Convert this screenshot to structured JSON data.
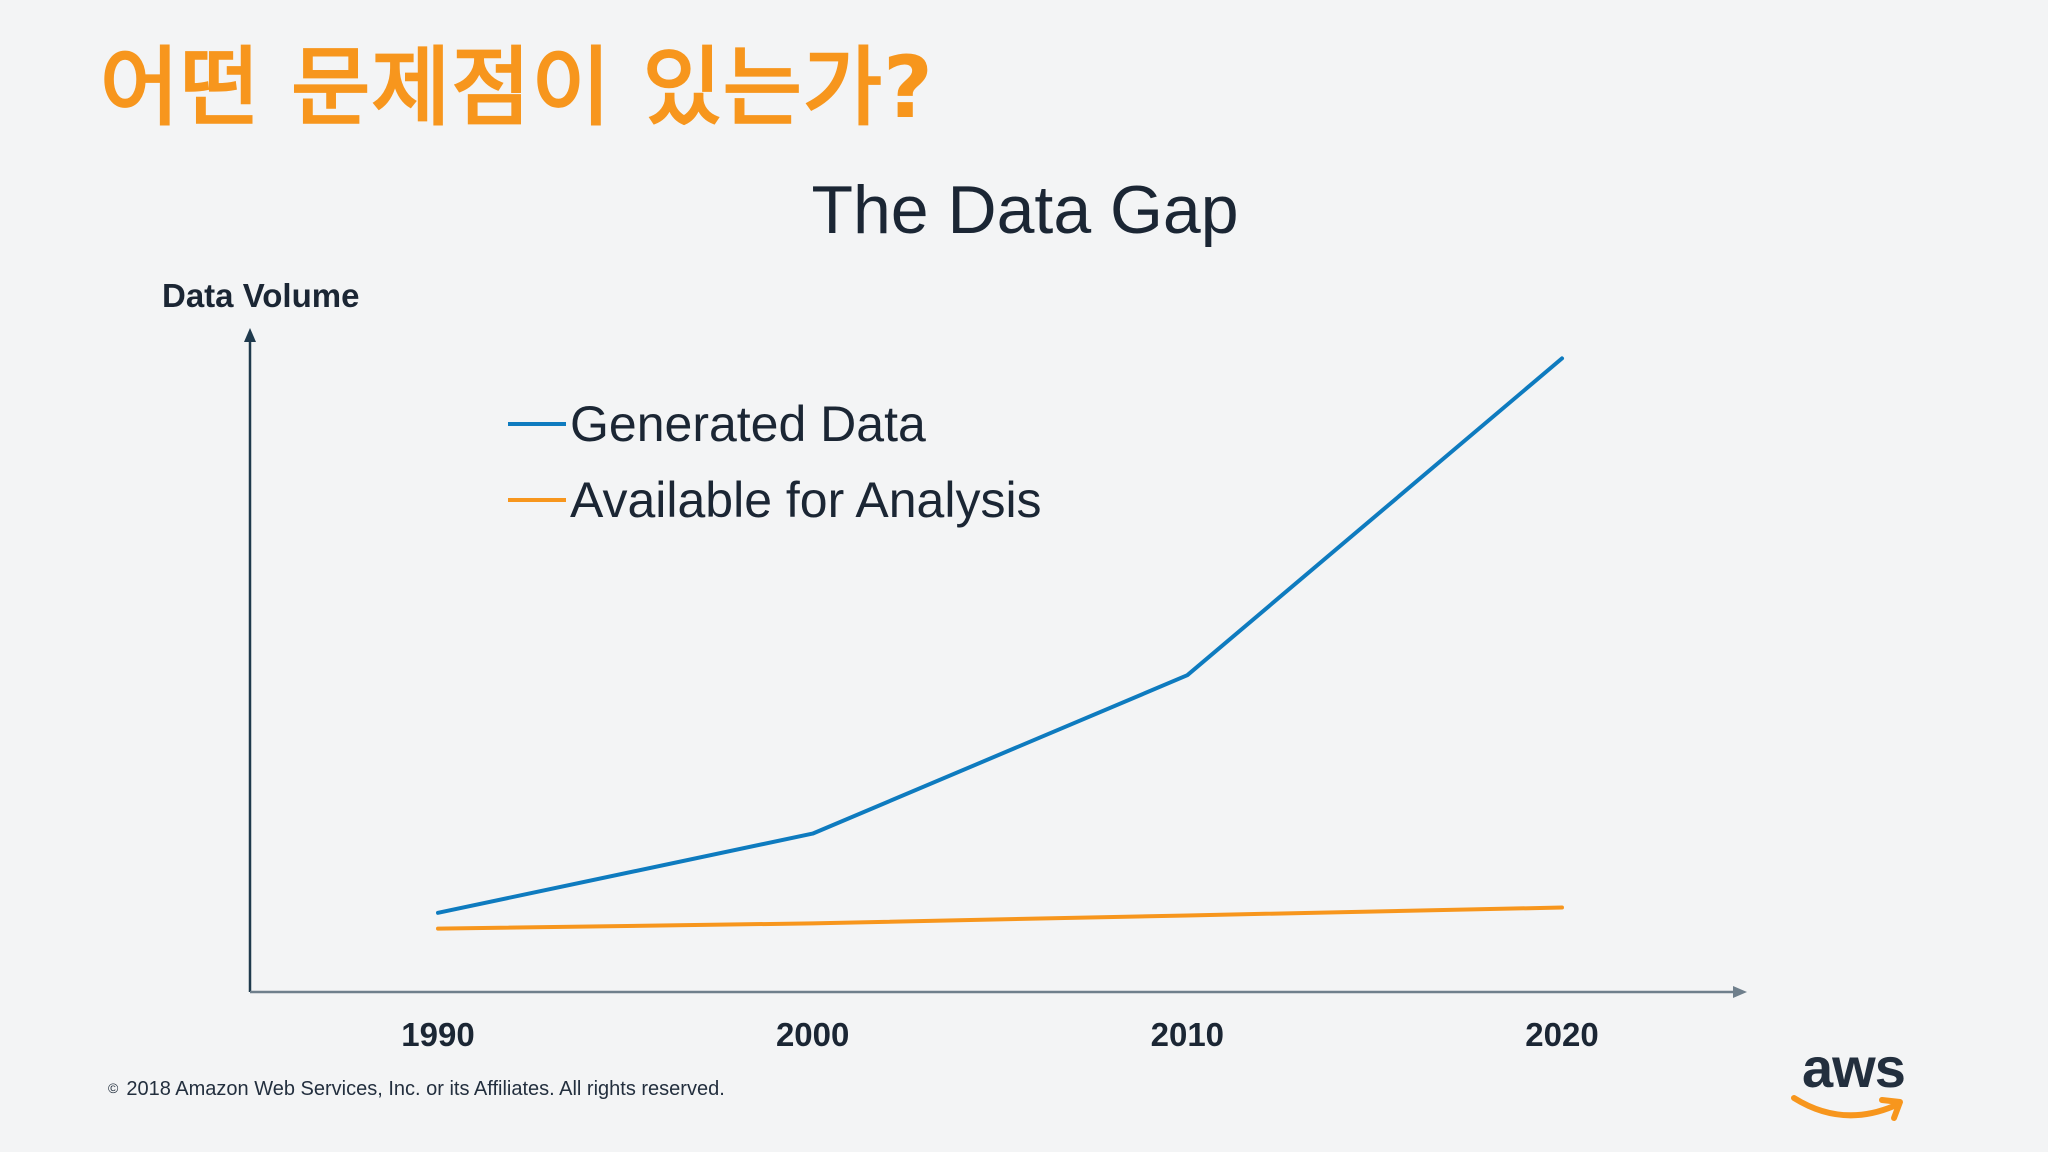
{
  "slide": {
    "title": "어떤 문제점이 있는가?",
    "footer": "2018 Amazon Web Services, Inc. or its Affiliates. All rights reserved.",
    "copyright_symbol": "©",
    "logo_text": "aws",
    "logo_icon": "amazon-smile-arrow-icon",
    "colors": {
      "background": "#f3f4f5",
      "title": "#f7961d",
      "text": "#1b2634",
      "axis": "#1f3a4d"
    }
  },
  "chart_data": {
    "type": "line",
    "title": "The Data Gap",
    "ylabel": "Data Volume",
    "xlabel": "",
    "categories": [
      "1990",
      "2000",
      "2010",
      "2020"
    ],
    "ylim": [
      0,
      100
    ],
    "grid": false,
    "legend": "top-left",
    "y_tick_labels": false,
    "series": [
      {
        "name": "Generated Data",
        "values": [
          12,
          24,
          48,
          96
        ],
        "color": "#0e7bbf"
      },
      {
        "name": "Available for Analysis",
        "values": [
          9.6,
          10.4,
          11.6,
          12.8
        ],
        "color": "#f7961d"
      }
    ]
  }
}
